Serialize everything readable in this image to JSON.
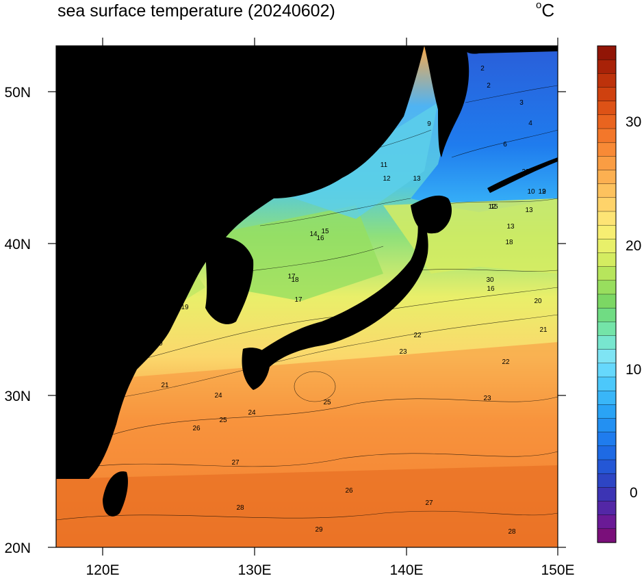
{
  "title": "sea surface temperature (20240602)",
  "unit": "°C",
  "map": {
    "lon_range": [
      117,
      150
    ],
    "lat_range": [
      20,
      53
    ],
    "lon_ticks": [
      "120E",
      "130E",
      "140E",
      "150E"
    ],
    "lat_ticks": [
      "20N",
      "30N",
      "40N",
      "50N"
    ],
    "land_color": "#000000"
  },
  "colorbar": {
    "min": -4,
    "max": 36,
    "interval": 1,
    "tick_labels": [
      "0",
      "10",
      "20",
      "30"
    ],
    "colors": [
      "#7a0f7a",
      "#6a1a96",
      "#5327a6",
      "#3c34b4",
      "#2d45c4",
      "#2457d6",
      "#1e6ae4",
      "#1f7cee",
      "#2390f2",
      "#2aa3f5",
      "#39b6f8",
      "#4cc8fb",
      "#66d8fc",
      "#7fe4f4",
      "#78e6cf",
      "#74e4a8",
      "#70dc83",
      "#7cd764",
      "#98de5e",
      "#b7e55c",
      "#d4ec61",
      "#e8f06a",
      "#f7ee72",
      "#fde475",
      "#fed36a",
      "#fdc25e",
      "#fcb051",
      "#fa9d43",
      "#f88a36",
      "#f3772a",
      "#e9641f",
      "#dd5216",
      "#cf410f",
      "#bd320b",
      "#a82208",
      "#911506"
    ]
  },
  "contour_labels": [
    "2",
    "2",
    "3",
    "4",
    "6",
    "9",
    "11",
    "12",
    "13",
    "12",
    "13",
    "14",
    "15",
    "16",
    "17",
    "18",
    "17",
    "18",
    "18",
    "19",
    "19",
    "20",
    "21",
    "22",
    "23",
    "24",
    "25",
    "26",
    "27",
    "28",
    "29",
    "30",
    "16",
    "20",
    "21",
    "22",
    "23",
    "24",
    "25",
    "26",
    "27",
    "28",
    "29",
    "13",
    "15",
    "12",
    "10",
    "9"
  ]
}
